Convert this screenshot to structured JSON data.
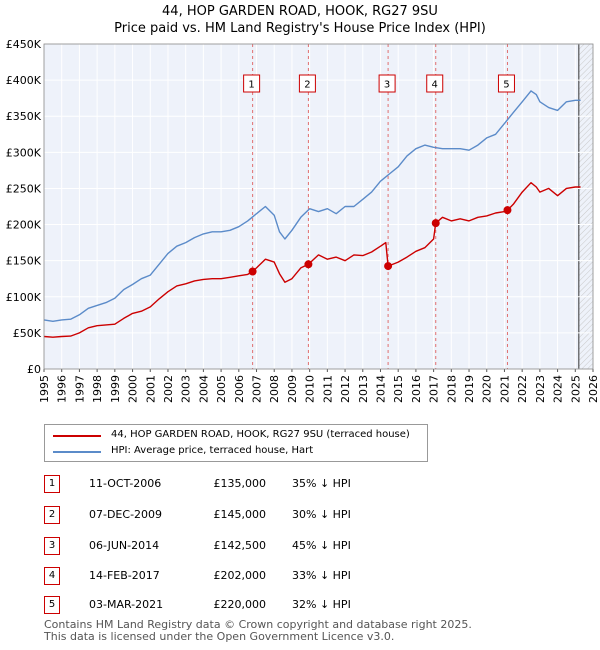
{
  "title_line1": "44, HOP GARDEN ROAD, HOOK, RG27 9SU",
  "title_line2": "Price paid vs. HM Land Registry's House Price Index (HPI)",
  "chart_data": {
    "type": "line",
    "xlim": [
      1995,
      2026
    ],
    "ylim": [
      0,
      450000
    ],
    "y_ticks": [
      {
        "value": 0,
        "label": "£0"
      },
      {
        "value": 50000,
        "label": "£50K"
      },
      {
        "value": 100000,
        "label": "£100K"
      },
      {
        "value": 150000,
        "label": "£150K"
      },
      {
        "value": 200000,
        "label": "£200K"
      },
      {
        "value": 250000,
        "label": "£250K"
      },
      {
        "value": 300000,
        "label": "£300K"
      },
      {
        "value": 350000,
        "label": "£350K"
      },
      {
        "value": 400000,
        "label": "£400K"
      },
      {
        "value": 450000,
        "label": "£450K"
      }
    ],
    "x_ticks": [
      "1995",
      "1996",
      "1997",
      "1998",
      "1999",
      "2000",
      "2001",
      "2002",
      "2003",
      "2004",
      "2005",
      "2006",
      "2007",
      "2008",
      "2009",
      "2010",
      "2011",
      "2012",
      "2013",
      "2014",
      "2015",
      "2016",
      "2017",
      "2018",
      "2019",
      "2020",
      "2021",
      "2022",
      "2023",
      "2024",
      "2025",
      "2026"
    ],
    "grid": true,
    "hatch_after": 2025.2,
    "series": [
      {
        "name": "44, HOP GARDEN ROAD, HOOK, RG27 9SU (terraced house)",
        "color": "#cc0000",
        "x": [
          1995.0,
          1995.5,
          1996.0,
          1996.5,
          1997.0,
          1997.5,
          1998.0,
          1998.5,
          1999.0,
          1999.5,
          2000.0,
          2000.5,
          2001.0,
          2001.5,
          2002.0,
          2002.5,
          2003.0,
          2003.5,
          2004.0,
          2004.5,
          2005.0,
          2005.5,
          2006.0,
          2006.5,
          2006.78,
          2007.0,
          2007.5,
          2008.0,
          2008.3,
          2008.6,
          2009.0,
          2009.5,
          2009.93,
          2010.5,
          2011.0,
          2011.5,
          2012.0,
          2012.5,
          2013.0,
          2013.5,
          2014.0,
          2014.3,
          2014.43,
          2015.0,
          2015.5,
          2016.0,
          2016.5,
          2017.0,
          2017.12,
          2017.5,
          2018.0,
          2018.5,
          2019.0,
          2019.5,
          2020.0,
          2020.5,
          2021.0,
          2021.17,
          2021.5,
          2022.0,
          2022.5,
          2022.8,
          2023.0,
          2023.5,
          2024.0,
          2024.5,
          2025.0,
          2025.3
        ],
        "values": [
          45000,
          44000,
          45000,
          45500,
          50000,
          57000,
          60000,
          61000,
          62000,
          70000,
          77000,
          80000,
          86000,
          97000,
          107000,
          115000,
          118000,
          122000,
          124000,
          125000,
          125000,
          127000,
          129000,
          131000,
          135000,
          140000,
          152000,
          148000,
          132000,
          120000,
          125000,
          140000,
          145000,
          158000,
          152000,
          155000,
          150000,
          158000,
          157000,
          162000,
          170000,
          175000,
          142500,
          148000,
          155000,
          163000,
          168000,
          180000,
          202000,
          210000,
          205000,
          208000,
          205000,
          210000,
          212000,
          216000,
          218000,
          220000,
          228000,
          245000,
          258000,
          252000,
          245000,
          250000,
          240000,
          250000,
          252000,
          252000
        ]
      },
      {
        "name": "HPI: Average price, terraced house, Hart",
        "color": "#5b8bc9",
        "x": [
          1995.0,
          1995.5,
          1996.0,
          1996.5,
          1997.0,
          1997.5,
          1998.0,
          1998.5,
          1999.0,
          1999.5,
          2000.0,
          2000.5,
          2001.0,
          2001.5,
          2002.0,
          2002.5,
          2003.0,
          2003.5,
          2004.0,
          2004.5,
          2005.0,
          2005.5,
          2006.0,
          2006.5,
          2007.0,
          2007.5,
          2008.0,
          2008.3,
          2008.6,
          2009.0,
          2009.5,
          2010.0,
          2010.5,
          2011.0,
          2011.5,
          2012.0,
          2012.5,
          2013.0,
          2013.5,
          2014.0,
          2014.5,
          2015.0,
          2015.5,
          2016.0,
          2016.5,
          2017.0,
          2017.5,
          2018.0,
          2018.5,
          2019.0,
          2019.5,
          2020.0,
          2020.5,
          2021.0,
          2021.5,
          2022.0,
          2022.5,
          2022.8,
          2023.0,
          2023.5,
          2024.0,
          2024.5,
          2025.0,
          2025.3
        ],
        "values": [
          68000,
          66000,
          68000,
          69000,
          75000,
          84000,
          88000,
          92000,
          98000,
          110000,
          117000,
          125000,
          130000,
          145000,
          160000,
          170000,
          175000,
          182000,
          187000,
          190000,
          190000,
          192000,
          197000,
          205000,
          215000,
          225000,
          213000,
          190000,
          180000,
          192000,
          210000,
          222000,
          218000,
          222000,
          215000,
          225000,
          225000,
          235000,
          245000,
          260000,
          270000,
          280000,
          295000,
          305000,
          310000,
          307000,
          305000,
          305000,
          305000,
          303000,
          310000,
          320000,
          325000,
          340000,
          355000,
          370000,
          385000,
          380000,
          370000,
          362000,
          358000,
          370000,
          372000,
          372000
        ]
      }
    ],
    "sales": [
      {
        "label": "1",
        "x": 2006.78,
        "value": 135000
      },
      {
        "label": "2",
        "x": 2009.93,
        "value": 145000
      },
      {
        "label": "3",
        "x": 2014.43,
        "value": 142500
      },
      {
        "label": "4",
        "x": 2017.12,
        "value": 202000
      },
      {
        "label": "5",
        "x": 2021.17,
        "value": 220000
      }
    ]
  },
  "legend": [
    {
      "label": "44, HOP GARDEN ROAD, HOOK, RG27 9SU (terraced house)",
      "color": "#cc0000"
    },
    {
      "label": "HPI: Average price, terraced house, Hart",
      "color": "#5b8bc9"
    }
  ],
  "table": [
    {
      "num": "1",
      "date": "11-OCT-2006",
      "price": "£135,000",
      "diff": "35% ↓ HPI"
    },
    {
      "num": "2",
      "date": "07-DEC-2009",
      "price": "£145,000",
      "diff": "30% ↓ HPI"
    },
    {
      "num": "3",
      "date": "06-JUN-2014",
      "price": "£142,500",
      "diff": "45% ↓ HPI"
    },
    {
      "num": "4",
      "date": "14-FEB-2017",
      "price": "£202,000",
      "diff": "33% ↓ HPI"
    },
    {
      "num": "5",
      "date": "03-MAR-2021",
      "price": "£220,000",
      "diff": "32% ↓ HPI"
    }
  ],
  "footer_line1": "Contains HM Land Registry data © Crown copyright and database right 2025.",
  "footer_line2": "This data is licensed under the Open Government Licence v3.0."
}
